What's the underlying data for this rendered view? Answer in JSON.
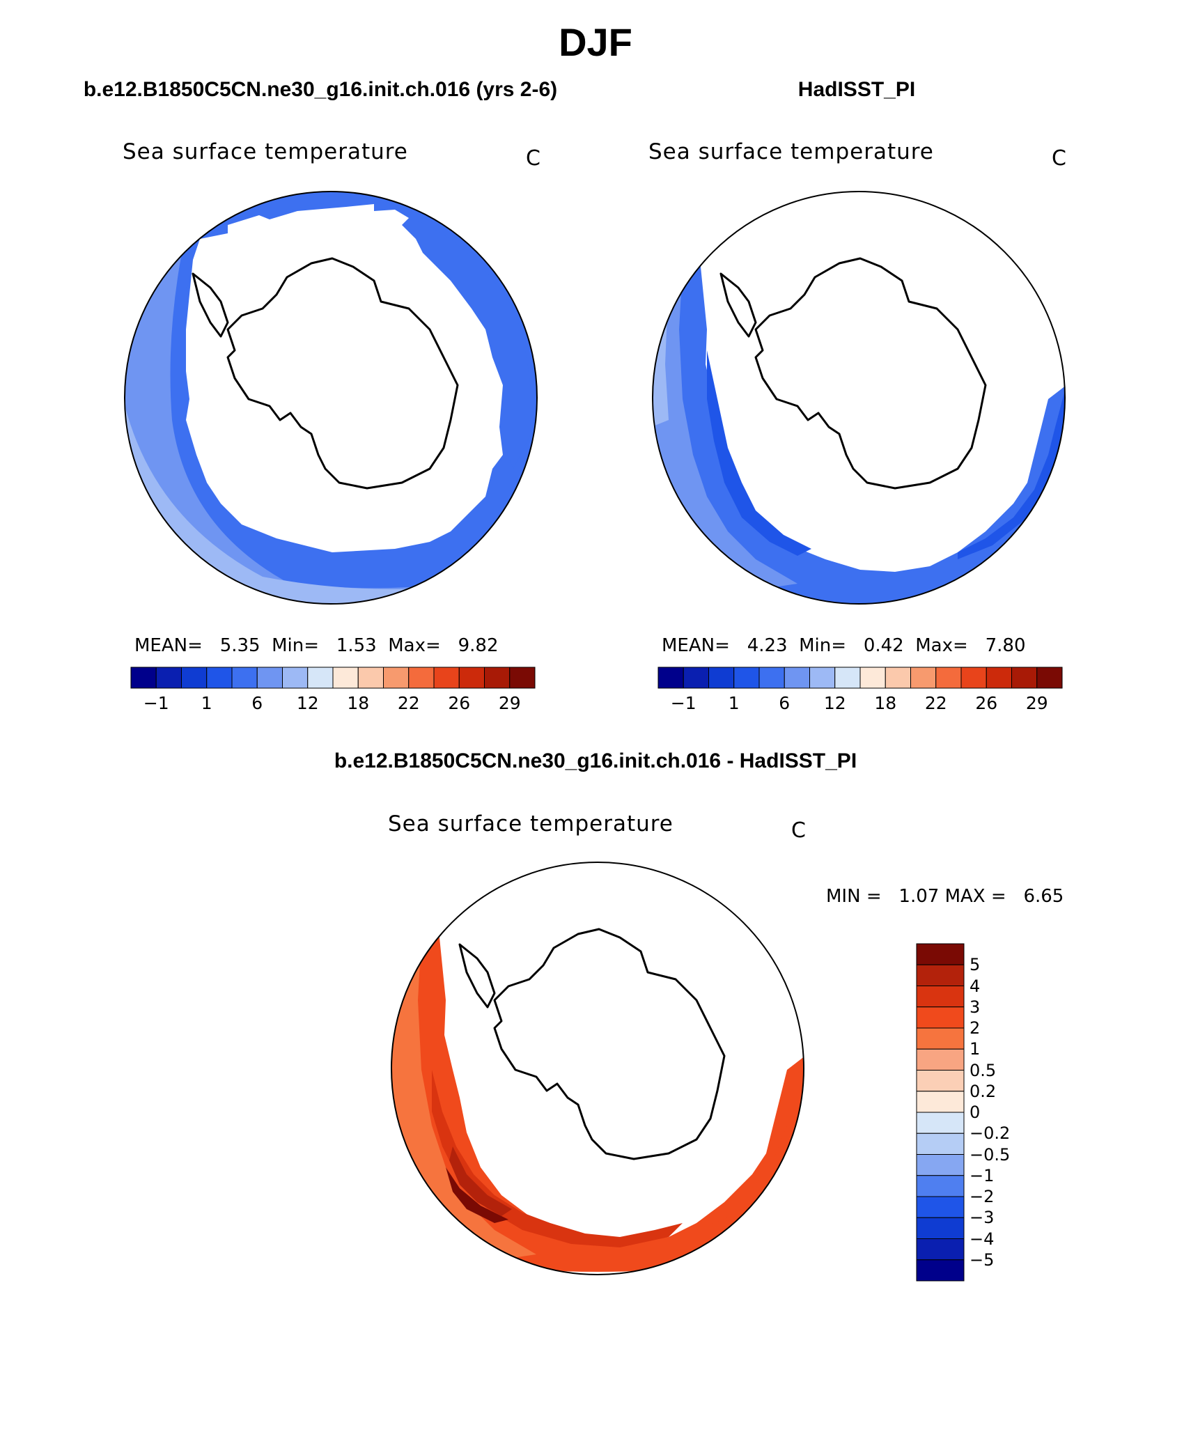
{
  "page": {
    "season": "DJF"
  },
  "panels": {
    "model": {
      "title": "b.e12.B1850C5CN.ne30_g16.init.ch.016 (yrs 2-6)",
      "variable": "Sea surface temperature",
      "unit": "C",
      "mean_label": "MEAN=",
      "mean": "5.35",
      "min_label": "Min=",
      "min": "1.53",
      "max_label": "Max=",
      "max": "9.82"
    },
    "obs": {
      "title": "HadISST_PI",
      "variable": "Sea surface temperature",
      "unit": "C",
      "mean_label": "MEAN=",
      "mean": "4.23",
      "min_label": "Min=",
      "min": "0.42",
      "max_label": "Max=",
      "max": "7.80"
    },
    "diff": {
      "title": "b.e12.B1850C5CN.ne30_g16.init.ch.016 - HadISST_PI",
      "variable": "Sea surface temperature",
      "unit": "C",
      "min_label": "MIN =",
      "min": "1.07",
      "max_label": "MAX =",
      "max": "6.65"
    }
  },
  "colorbars": {
    "sst": {
      "colors": [
        "#00008b",
        "#0a1fb0",
        "#0f3cd2",
        "#1f55e8",
        "#3d70f0",
        "#6f95f2",
        "#9db9f5",
        "#d6e6f8",
        "#fde9d9",
        "#fbc9ac",
        "#f79a6e",
        "#f46b3c",
        "#e8441b",
        "#cc2a0b",
        "#a81a06",
        "#7a0a04"
      ],
      "tick_labels": [
        "−1",
        "1",
        "6",
        "12",
        "18",
        "22",
        "26",
        "29"
      ]
    },
    "diff": {
      "colors": [
        "#7a0a04",
        "#b3220b",
        "#d93410",
        "#f04a1c",
        "#f6743e",
        "#f8a582",
        "#fbcfb6",
        "#fde9d9",
        "#d6e6f8",
        "#b5cdf5",
        "#86a7f2",
        "#4f7ff0",
        "#1f55e8",
        "#0f3cd2",
        "#0a1fb0",
        "#00008b"
      ],
      "tick_labels": [
        "5",
        "4",
        "3",
        "2",
        "1",
        "0.5",
        "0.2",
        "0",
        "−0.2",
        "−0.5",
        "−1",
        "−2",
        "−3",
        "−4",
        "−5"
      ]
    }
  },
  "map_colors": {
    "model_fill": [
      "#3d70f0",
      "#6f95f2",
      "#9db9f5",
      "#1f55e8"
    ],
    "obs_fill": [
      "#3d70f0",
      "#1f55e8",
      "#6f95f2",
      "#9db9f5"
    ],
    "diff_fill": [
      "#f04a1c",
      "#f6743e",
      "#d93410",
      "#b3220b",
      "#7a0a04"
    ],
    "land": "#ffffff",
    "coast": "#000000"
  }
}
